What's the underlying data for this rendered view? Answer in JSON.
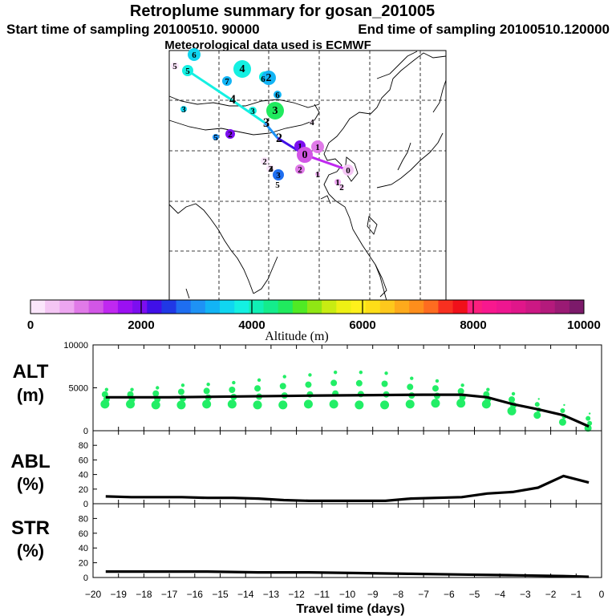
{
  "header": {
    "title": "Retroplume summary for gosan_201005",
    "start_label": "Start time of sampling 20100510. 90000",
    "end_label": "End time of sampling 20100510.120000",
    "met_label": "Meteorological data used is ECMWF"
  },
  "colorbar": {
    "colors": [
      "#fbe6fb",
      "#f4c6f4",
      "#eda6f0",
      "#e07ae8",
      "#d256e6",
      "#c028f0",
      "#9b10f2",
      "#7c0ef0",
      "#4010e8",
      "#2038e6",
      "#1e6ef0",
      "#1e92f5",
      "#12b4f5",
      "#10d6f0",
      "#14f0e2",
      "#10f0b6",
      "#14ec8c",
      "#20ea5e",
      "#50ea24",
      "#90e614",
      "#c8ec12",
      "#eef014",
      "#fef01c",
      "#fede18",
      "#fec81c",
      "#feaa1c",
      "#fe8e1c",
      "#fe6c20",
      "#f83020",
      "#f0101a",
      "#fc1f7e",
      "#f8188e",
      "#ee1690",
      "#e0168a",
      "#cc1884",
      "#b41a7c",
      "#9a1a74",
      "#7c1a6a"
    ],
    "tick_labels": [
      "0",
      "2000",
      "4000",
      "6000",
      "8000",
      "10000"
    ],
    "tick_values": [
      0,
      2000,
      4000,
      6000,
      8000,
      10000
    ],
    "title": "Altitude (m)"
  },
  "map": {
    "markers": [
      {
        "n": "6",
        "alt": 3600
      },
      {
        "n": "5",
        "alt": 3900
      },
      {
        "n": "5",
        "alt": 0
      },
      {
        "n": "7",
        "alt": 3200
      },
      {
        "n": "4",
        "alt": 3800
      },
      {
        "n": "4",
        "alt": 3700
      },
      {
        "n": "6",
        "alt": 3400
      },
      {
        "n": "3",
        "alt": 3500
      },
      {
        "n": "2",
        "alt": 2000
      },
      {
        "n": "5",
        "alt": 3000
      },
      {
        "n": "3",
        "alt": 3900
      },
      {
        "n": "4",
        "alt": 0
      },
      {
        "n": "3",
        "alt": 4600
      },
      {
        "n": "2",
        "alt": 3300
      },
      {
        "n": "6",
        "alt": 4200
      },
      {
        "n": "2",
        "alt": 0
      },
      {
        "n": "1",
        "alt": 1900
      },
      {
        "n": "1",
        "alt": 900
      },
      {
        "n": "0",
        "alt": 1200
      },
      {
        "n": "2",
        "alt": 0
      },
      {
        "n": "3",
        "alt": 2800
      },
      {
        "n": "4",
        "alt": 2300
      },
      {
        "n": "5",
        "alt": 1800
      },
      {
        "n": "2",
        "alt": 900
      },
      {
        "n": "1",
        "alt": 700
      },
      {
        "n": "0",
        "alt": 300
      },
      {
        "n": "1",
        "alt": 600
      },
      {
        "n": "2",
        "alt": 500
      }
    ],
    "path_points": [
      {
        "label": "5",
        "alt": 3800
      },
      {
        "label": "4",
        "alt": 3700
      },
      {
        "label": "3",
        "alt": 3800
      },
      {
        "label": "2",
        "alt": 2500
      },
      {
        "label": "1",
        "alt": 1800
      },
      {
        "label": "0",
        "alt": 900
      }
    ]
  },
  "chart_data": [
    {
      "type": "line",
      "title": "ALT",
      "ylabel": "ALT (m)",
      "ylabel_lines": [
        "ALT",
        "(m)"
      ],
      "ylim": [
        0,
        10000
      ],
      "yticks": [
        0,
        5000,
        10000
      ],
      "xlim": [
        -20,
        0
      ],
      "series": [
        {
          "name": "mean altitude",
          "x": [
            -19.5,
            -17,
            -14,
            -11,
            -9,
            -7,
            -5.5,
            -4.5,
            -3.5,
            -2.5,
            -1.5,
            -0.5
          ],
          "y": [
            3900,
            3900,
            4000,
            4100,
            4150,
            4200,
            4200,
            3900,
            3100,
            2500,
            1800,
            500
          ]
        }
      ],
      "scatter": {
        "x": [
          -19.5,
          -18.5,
          -17.5,
          -16.5,
          -15.5,
          -14.5,
          -13.5,
          -12.5,
          -11.5,
          -10.5,
          -9.5,
          -8.5,
          -7.5,
          -6.5,
          -5.5,
          -4.5,
          -3.5,
          -2.5,
          -1.5,
          -0.5
        ],
        "top": [
          4800,
          4800,
          5000,
          5300,
          5400,
          5600,
          5900,
          6300,
          6500,
          6800,
          6800,
          6700,
          6100,
          5800,
          5300,
          4800,
          4300,
          3700,
          3000,
          2000
        ],
        "bottom": [
          3100,
          3100,
          3000,
          3000,
          3100,
          3100,
          3000,
          3000,
          3100,
          3100,
          3000,
          3000,
          3100,
          3200,
          3200,
          3100,
          2300,
          1800,
          1000,
          300
        ]
      }
    },
    {
      "type": "line",
      "title": "ABL",
      "ylabel": "ABL (%)",
      "ylabel_lines": [
        "ABL",
        "(%)"
      ],
      "ylim": [
        0,
        100
      ],
      "yticks": [
        0,
        20,
        40,
        60,
        80
      ],
      "xlim": [
        -20,
        0
      ],
      "series": [
        {
          "name": "ABL",
          "x": [
            -19.5,
            -18.5,
            -17.5,
            -16.5,
            -15.5,
            -14.5,
            -13.5,
            -12.5,
            -11.5,
            -10.5,
            -9.5,
            -8.5,
            -7.5,
            -6.5,
            -5.5,
            -4.5,
            -3.5,
            -2.5,
            -1.5,
            -0.5
          ],
          "y": [
            10,
            9,
            9,
            9,
            8,
            8,
            7,
            5,
            4,
            4,
            4,
            4,
            7,
            8,
            9,
            14,
            16,
            22,
            38,
            29
          ]
        }
      ]
    },
    {
      "type": "line",
      "title": "STR",
      "ylabel": "STR (%)",
      "ylabel_lines": [
        "STR",
        "(%)"
      ],
      "ylim": [
        0,
        100
      ],
      "yticks": [
        0,
        20,
        40,
        60,
        80
      ],
      "xlim": [
        -20,
        0
      ],
      "xlabel": "Travel time (days)",
      "xticks": [
        -20,
        -19,
        -18,
        -17,
        -16,
        -15,
        -14,
        -13,
        -12,
        -11,
        -10,
        -9,
        -8,
        -7,
        -6,
        -5,
        -4,
        -3,
        -2,
        -1,
        0
      ],
      "xtick_labels": [
        "−20",
        "−19",
        "−18",
        "−17",
        "−16",
        "−15",
        "−14",
        "−13",
        "−12",
        "−11",
        "−10",
        "−9",
        "−8",
        "−7",
        "−6",
        "−5",
        "−4",
        "−3",
        "−2",
        "−1",
        "0"
      ],
      "series": [
        {
          "name": "STR",
          "x": [
            -19.5,
            -17.5,
            -15.5,
            -13.5,
            -11.5,
            -9.5,
            -7.5,
            -5.5,
            -3.5,
            -1.5,
            -0.5
          ],
          "y": [
            8,
            8,
            8,
            7,
            7,
            6,
            5,
            4,
            3,
            2,
            1
          ]
        }
      ]
    }
  ]
}
